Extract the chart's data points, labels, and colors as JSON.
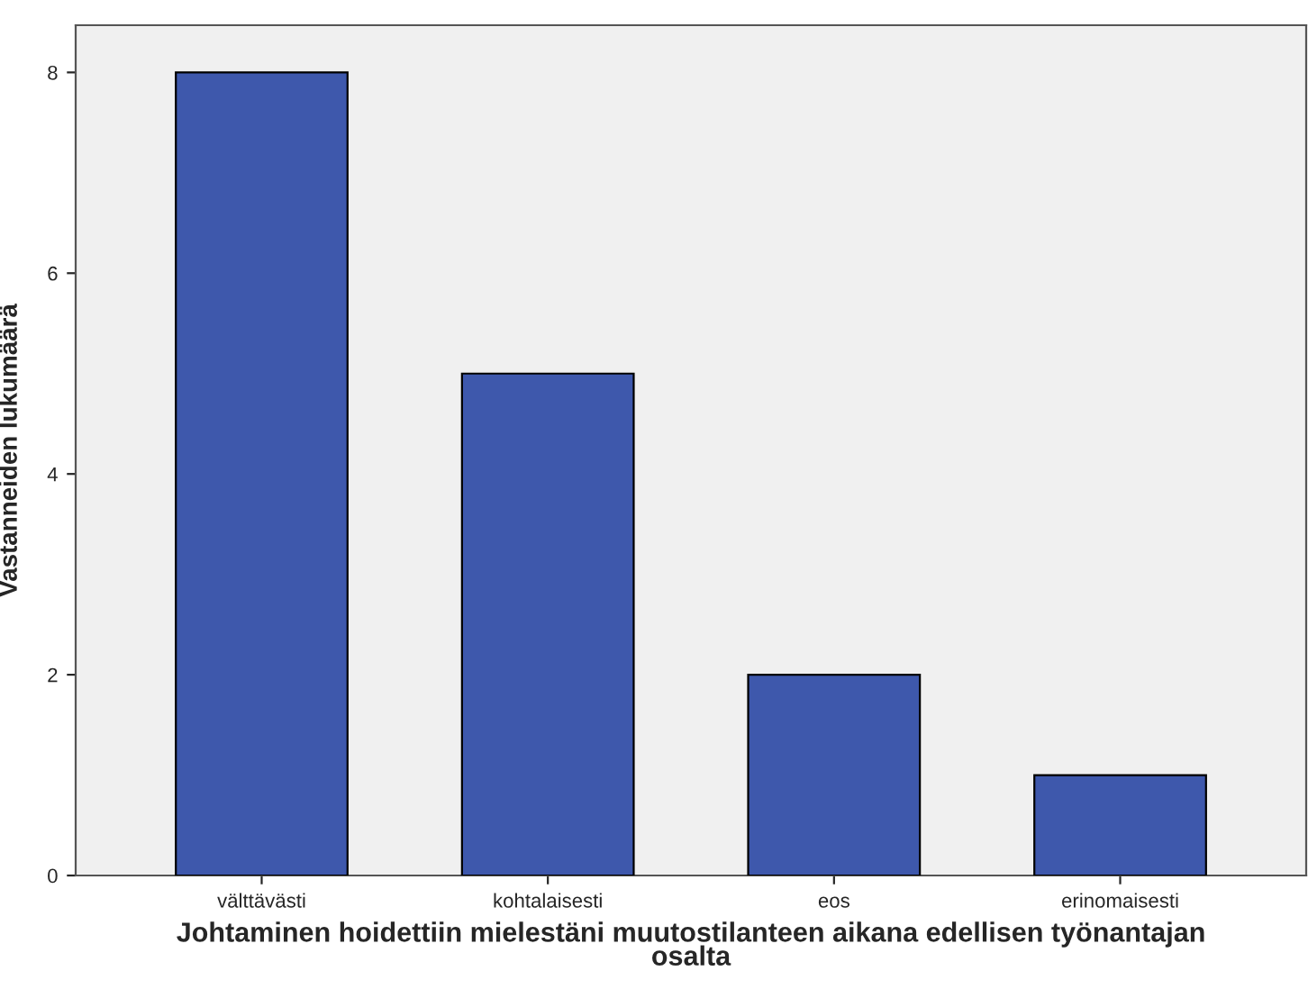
{
  "chart_data": {
    "type": "bar",
    "categories": [
      "välttävästi",
      "kohtalaisesti",
      "eos",
      "erinomaisesti"
    ],
    "values": [
      8,
      5,
      2,
      1
    ],
    "color": "#3e58ac",
    "xlabel": "Johtaminen hoidettiin mielestäni muutostilanteen aikana edellisen työnantajan\nosalta",
    "ylabel": "Vastanneiden lukumäärä",
    "ylim": [
      0,
      8.47
    ],
    "yticks": [
      0,
      2,
      4,
      6,
      8
    ],
    "grid": false
  }
}
